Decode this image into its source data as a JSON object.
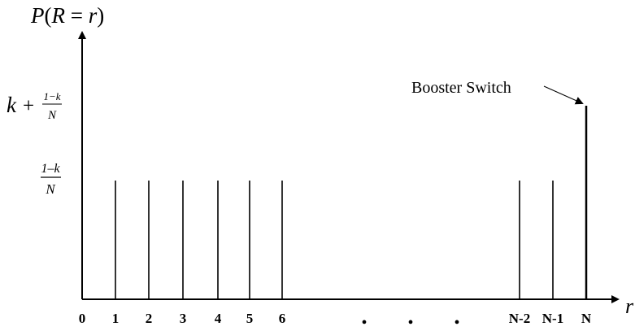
{
  "chart_data": {
    "type": "bar",
    "title": "",
    "ylabel": {
      "P": "P",
      "open": "(",
      "R": "R",
      "eq": " = ",
      "r": "r",
      "close": ")"
    },
    "xlabel": "r",
    "categories": [
      "0",
      "1",
      "2",
      "3",
      "4",
      "5",
      "6",
      "N-2",
      "N-1",
      "N"
    ],
    "ellipsis": [
      "•",
      "•",
      "•"
    ],
    "values_labels": [
      "(1-k)/N",
      "(1-k)/N",
      "(1-k)/N",
      "(1-k)/N",
      "(1-k)/N",
      "(1-k)/N",
      "(1-k)/N",
      "(1-k)/N",
      "(1-k)/N",
      "k + (1-k)/N"
    ],
    "y_levels": [
      {
        "id": "low",
        "label_num": "1–k",
        "label_den": "N"
      },
      {
        "id": "high",
        "label_k": "k",
        "label_plus": "+",
        "label_num": "1−k",
        "label_den": "N"
      }
    ],
    "annotation": {
      "text": "Booster Switch",
      "target_category": "N"
    },
    "grid": false,
    "legend": "none"
  }
}
